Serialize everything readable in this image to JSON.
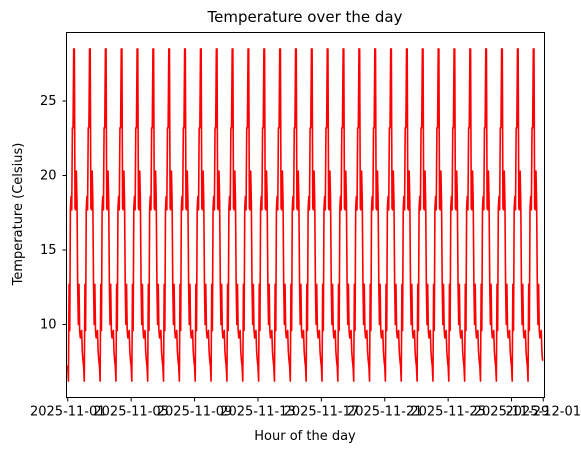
{
  "chart_data": {
    "type": "line",
    "title": "Temperature over the day",
    "xlabel": "Hour of the day",
    "ylabel": "Temperature (Celsius)",
    "x_start": "2025-11-01",
    "x_end": "2025-12-01",
    "xlim": [
      "2025-11-01",
      "2025-12-01"
    ],
    "ylim": [
      5.1,
      29.6
    ],
    "grid": false,
    "legend": "none",
    "x_ticks": [
      {
        "value": "2025-11-01",
        "label": "2025-11-01"
      },
      {
        "value": "2025-11-05",
        "label": "2025-11-05"
      },
      {
        "value": "2025-11-09",
        "label": "2025-11-09"
      },
      {
        "value": "2025-11-13",
        "label": "2025-11-13"
      },
      {
        "value": "2025-11-17",
        "label": "2025-11-17"
      },
      {
        "value": "2025-11-21",
        "label": "2025-11-21"
      },
      {
        "value": "2025-11-25",
        "label": "2025-11-25"
      },
      {
        "value": "2025-11-29",
        "label": "2025-11-29"
      },
      {
        "value": "2025-12-01",
        "label": "2025-12-01"
      }
    ],
    "y_ticks": [
      {
        "value": 10,
        "label": "10"
      },
      {
        "value": 15,
        "label": "15"
      },
      {
        "value": 20,
        "label": "20"
      },
      {
        "value": 25,
        "label": "25"
      }
    ],
    "series": [
      {
        "color": "#ff0000",
        "daily_profile_hours": [
          0,
          1,
          2,
          3,
          4,
          5,
          6,
          7,
          8,
          9,
          10,
          11,
          12,
          13,
          14,
          15,
          16,
          17,
          18,
          19,
          20,
          21,
          22,
          23
        ],
        "daily_profile_values": [
          7.2,
          6.2,
          12.7,
          9.6,
          17.8,
          18.6,
          17.7,
          23.2,
          23.2,
          28.5,
          28.5,
          17.8,
          17.7,
          20.3,
          18.2,
          12.7,
          10.0,
          12.7,
          9.6,
          9.1,
          9.4,
          9.6,
          8.2,
          7.6
        ]
      }
    ]
  }
}
